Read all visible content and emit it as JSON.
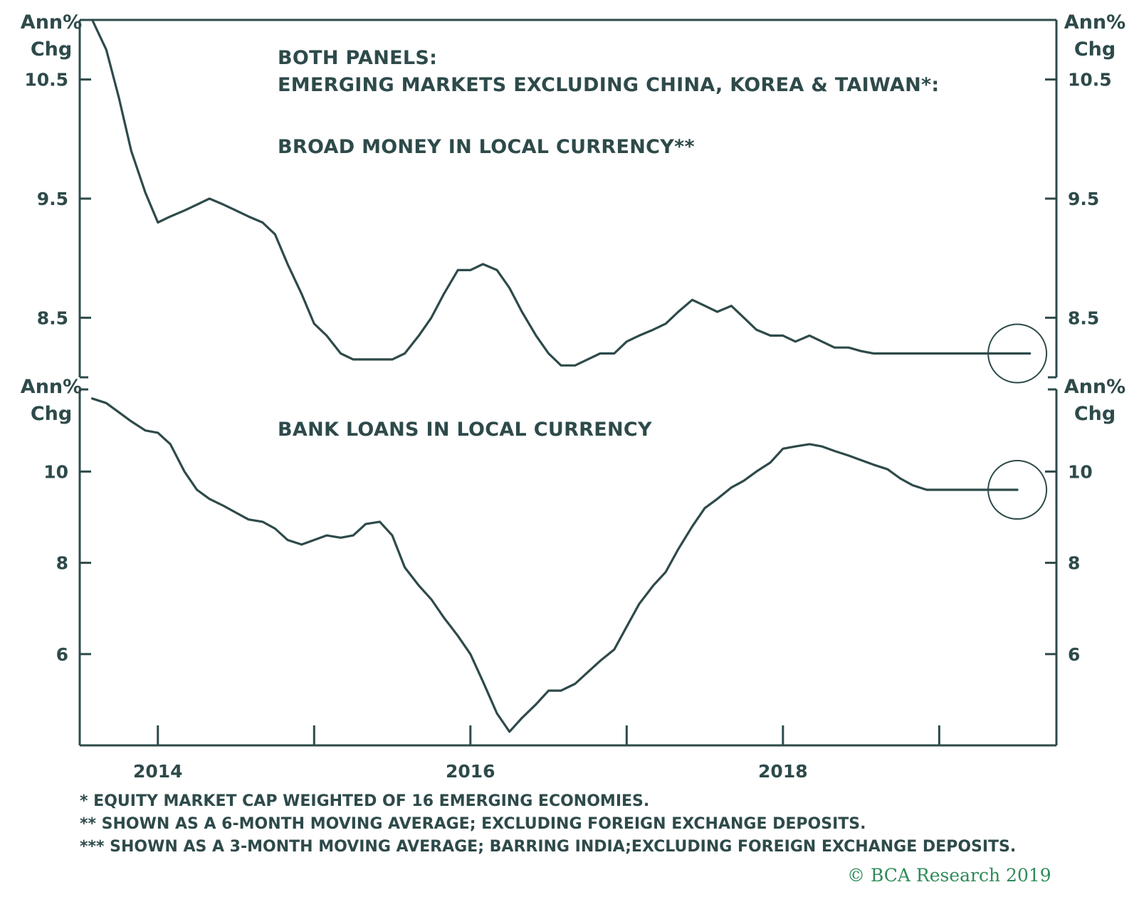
{
  "colors": {
    "ink": "#2e4a4a",
    "credit": "#2e8b57",
    "background": "#ffffff"
  },
  "header_title": "BOTH PANELS:",
  "header_subtitle": "EMERGING MARKETS EXCLUDING CHINA, KOREA & TAIWAN*:",
  "x_axis": {
    "type": "time",
    "range": [
      2013.5,
      2019.75
    ],
    "ticks": [
      2014,
      2015,
      2016,
      2017,
      2018,
      2019
    ],
    "labels": [
      {
        "value": 2014,
        "text": "2014"
      },
      {
        "value": 2016,
        "text": "2016"
      },
      {
        "value": 2018,
        "text": "2018"
      }
    ]
  },
  "footnotes": [
    "*  EQUITY MARKET CAP WEIGHTED OF 16 EMERGING ECONOMIES.",
    "**  SHOWN AS A 6-MONTH MOVING AVERAGE; EXCLUDING FOREIGN EXCHANGE DEPOSITS.",
    "*** SHOWN AS A 3-MONTH MOVING AVERAGE; BARRING INDIA;EXCLUDING FOREIGN EXCHANGE DEPOSITS."
  ],
  "credit": "© BCA Research 2019",
  "chart_data": [
    {
      "type": "line",
      "title": "BROAD MONEY IN LOCAL CURRENCY**",
      "ylabel": "Ann% Chg",
      "ylabel_lines": [
        "Ann%",
        "Chg"
      ],
      "ylim": [
        8.0,
        11.0
      ],
      "yticks": [
        8.5,
        9.5,
        10.5
      ],
      "ytick_labels": [
        "8.5",
        "9.5",
        "10.5"
      ],
      "grid": false,
      "annotation": "circle around latest values",
      "annotation_target": 2019.5,
      "series": [
        {
          "x": [
            2013.58,
            2013.67,
            2013.75,
            2013.83,
            2013.92,
            2014.0,
            2014.08,
            2014.17,
            2014.25,
            2014.33,
            2014.42,
            2014.5,
            2014.58,
            2014.67,
            2014.75,
            2014.83,
            2014.92,
            2015.0,
            2015.08,
            2015.17,
            2015.25,
            2015.33,
            2015.42,
            2015.5,
            2015.58,
            2015.67,
            2015.75,
            2015.83,
            2015.92,
            2016.0,
            2016.08,
            2016.17,
            2016.25,
            2016.33,
            2016.42,
            2016.5,
            2016.58,
            2016.67,
            2016.75,
            2016.83,
            2016.92,
            2017.0,
            2017.08,
            2017.17,
            2017.25,
            2017.33,
            2017.42,
            2017.5,
            2017.58,
            2017.67,
            2017.75,
            2017.83,
            2017.92,
            2018.0,
            2018.08,
            2018.17,
            2018.25,
            2018.33,
            2018.42,
            2018.5,
            2018.58,
            2018.67,
            2018.75,
            2018.83,
            2018.92,
            2019.0,
            2019.08,
            2019.17,
            2019.25,
            2019.33,
            2019.42,
            2019.5,
            2019.58
          ],
          "values": [
            11.0,
            10.75,
            10.35,
            9.9,
            9.55,
            9.3,
            9.35,
            9.4,
            9.45,
            9.5,
            9.45,
            9.4,
            9.35,
            9.3,
            9.2,
            8.95,
            8.7,
            8.45,
            8.35,
            8.2,
            8.15,
            8.15,
            8.15,
            8.15,
            8.2,
            8.35,
            8.5,
            8.7,
            8.9,
            8.9,
            8.95,
            8.9,
            8.75,
            8.55,
            8.35,
            8.2,
            8.1,
            8.1,
            8.15,
            8.2,
            8.2,
            8.3,
            8.35,
            8.4,
            8.45,
            8.55,
            8.65,
            8.6,
            8.55,
            8.6,
            8.5,
            8.4,
            8.35,
            8.35,
            8.3,
            8.35,
            8.3,
            8.25,
            8.25,
            8.22,
            8.2,
            8.2,
            8.2,
            8.2,
            8.2,
            8.2,
            8.2,
            8.2,
            8.2,
            8.2,
            8.2,
            8.2,
            8.2
          ]
        }
      ]
    },
    {
      "type": "line",
      "title": "BANK LOANS IN LOCAL CURRENCY",
      "ylabel": "Ann% Chg",
      "ylabel_lines": [
        "Ann%",
        "Chg"
      ],
      "ylim": [
        4.0,
        11.8
      ],
      "yticks": [
        6,
        8,
        10
      ],
      "ytick_labels": [
        "6",
        "8",
        "10"
      ],
      "grid": false,
      "annotation": "circle around latest values",
      "annotation_target": 2019.5,
      "series": [
        {
          "x": [
            2013.58,
            2013.67,
            2013.75,
            2013.83,
            2013.92,
            2014.0,
            2014.08,
            2014.17,
            2014.25,
            2014.33,
            2014.42,
            2014.5,
            2014.58,
            2014.67,
            2014.75,
            2014.83,
            2014.92,
            2015.0,
            2015.08,
            2015.17,
            2015.25,
            2015.33,
            2015.42,
            2015.5,
            2015.58,
            2015.67,
            2015.75,
            2015.83,
            2015.92,
            2016.0,
            2016.08,
            2016.17,
            2016.25,
            2016.33,
            2016.42,
            2016.5,
            2016.58,
            2016.67,
            2016.75,
            2016.83,
            2016.92,
            2017.0,
            2017.08,
            2017.17,
            2017.25,
            2017.33,
            2017.42,
            2017.5,
            2017.58,
            2017.67,
            2017.75,
            2017.83,
            2017.92,
            2018.0,
            2018.08,
            2018.17,
            2018.25,
            2018.33,
            2018.42,
            2018.5,
            2018.58,
            2018.67,
            2018.75,
            2018.83,
            2018.92,
            2019.0,
            2019.08,
            2019.17,
            2019.25,
            2019.33,
            2019.42,
            2019.5
          ],
          "values": [
            11.6,
            11.5,
            11.3,
            11.1,
            10.9,
            10.85,
            10.6,
            10.0,
            9.6,
            9.4,
            9.25,
            9.1,
            8.95,
            8.9,
            8.75,
            8.5,
            8.4,
            8.5,
            8.6,
            8.55,
            8.6,
            8.85,
            8.9,
            8.6,
            7.9,
            7.5,
            7.2,
            6.8,
            6.4,
            6.0,
            5.4,
            4.7,
            4.3,
            4.6,
            4.9,
            5.2,
            5.2,
            5.35,
            5.6,
            5.85,
            6.1,
            6.6,
            7.1,
            7.5,
            7.8,
            8.3,
            8.8,
            9.2,
            9.4,
            9.65,
            9.8,
            10.0,
            10.2,
            10.5,
            10.55,
            10.6,
            10.55,
            10.45,
            10.35,
            10.25,
            10.15,
            10.05,
            9.85,
            9.7,
            9.6,
            9.6,
            9.6,
            9.6,
            9.6,
            9.6,
            9.6,
            9.6
          ]
        }
      ]
    }
  ]
}
